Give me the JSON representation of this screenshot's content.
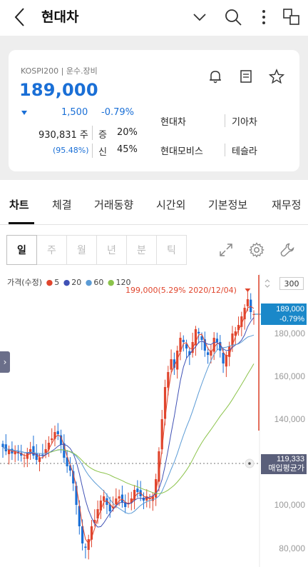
{
  "header": {
    "title": "현대차",
    "icons": [
      "back-icon",
      "chevron-down-icon",
      "search-icon",
      "more-vertical-icon",
      "multi-window-icon"
    ]
  },
  "stock": {
    "category": "KOSPI200 | 운수.장비",
    "price": "189,000",
    "change": "1,500",
    "change_pct": "-0.79%",
    "volume": "930,831 주",
    "volume_pct": "(95.48%)",
    "stats": [
      {
        "label": "증",
        "value": "20%"
      },
      {
        "label": "신",
        "value": "45%"
      }
    ],
    "related": [
      "현대차",
      "기아차",
      "현대모비스",
      "테슬라"
    ],
    "colors": {
      "down": "#1a6fd6",
      "up": "#e0452d"
    }
  },
  "tabs": [
    "차트",
    "체결",
    "거래동향",
    "시간외",
    "기본정보",
    "재무정"
  ],
  "periods": [
    "일",
    "주",
    "월",
    "년",
    "분",
    "틱"
  ],
  "chart": {
    "legend_prefix": "가격(수정)",
    "ma_labels": [
      "5",
      "20",
      "60",
      "120"
    ],
    "ma_colors": [
      "#e0452d",
      "#3f51b5",
      "#5b9bd5",
      "#8bc34a"
    ],
    "high_label": "199,000(5.29% 2020/12/04)",
    "unit": "300",
    "current_price": "189,000",
    "current_pct": "-0.79%",
    "avg_price": "119,333",
    "avg_label": "매입평균가",
    "y_ticks": [
      "180,000",
      "160,000",
      "140,000",
      "100,000",
      "80,000"
    ]
  },
  "chart_data": {
    "type": "candlestick",
    "ylim": [
      75000,
      204000
    ],
    "y_ticks": [
      80000,
      100000,
      140000,
      160000,
      180000
    ],
    "high": 199000,
    "close": 189000,
    "avg_price": 119333,
    "closes": [
      127000,
      125000,
      126000,
      124000,
      125000,
      124000,
      123000,
      122000,
      124000,
      126000,
      123000,
      121000,
      122000,
      123000,
      126000,
      129000,
      131000,
      134000,
      133000,
      128000,
      122000,
      118000,
      116000,
      110000,
      100000,
      90000,
      82000,
      80000,
      84000,
      90000,
      93000,
      98000,
      102000,
      104000,
      100000,
      97000,
      99000,
      103000,
      104000,
      101000,
      99000,
      101000,
      103000,
      107000,
      106000,
      104000,
      102000,
      104000,
      103000,
      104000,
      112000,
      125000,
      140000,
      155000,
      162000,
      168000,
      164000,
      172000,
      178000,
      176000,
      173000,
      170000,
      176000,
      182000,
      180000,
      177000,
      172000,
      170000,
      172000,
      178000,
      176000,
      172000,
      166000,
      170000,
      174000,
      180000,
      181000,
      184000,
      188000,
      192000,
      196000,
      190000,
      189000
    ]
  }
}
